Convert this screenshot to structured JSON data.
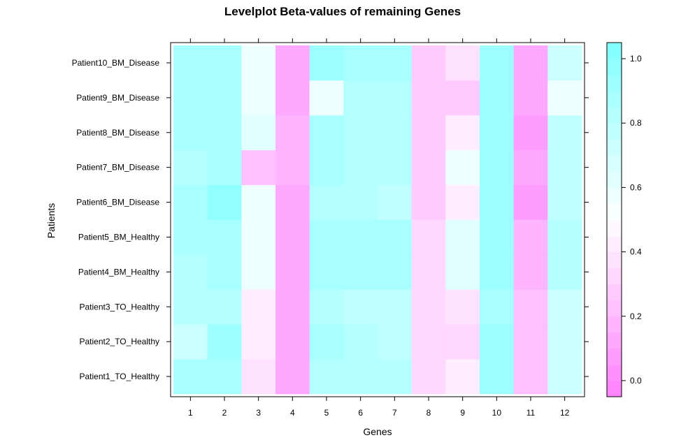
{
  "chart_data": {
    "type": "heatmap",
    "title": "Levelplot Beta-values of remaining Genes",
    "xlabel": "Genes",
    "ylabel": "Patients",
    "x_categories": [
      "1",
      "2",
      "3",
      "4",
      "5",
      "6",
      "7",
      "8",
      "9",
      "10",
      "11",
      "12"
    ],
    "y_categories": [
      "Patient1_TO_Healthy",
      "Patient2_TO_Healthy",
      "Patient3_TO_Healthy",
      "Patient4_BM_Healthy",
      "Patient5_BM_Healthy",
      "Patient6_BM_Disease",
      "Patient7_BM_Disease",
      "Patient8_BM_Disease",
      "Patient9_BM_Disease",
      "Patient10_BM_Disease"
    ],
    "values": [
      [
        0.85,
        0.85,
        0.38,
        0.1,
        0.82,
        0.8,
        0.8,
        0.33,
        0.42,
        0.9,
        0.22,
        0.72
      ],
      [
        0.72,
        0.9,
        0.42,
        0.1,
        0.88,
        0.82,
        0.78,
        0.33,
        0.33,
        0.9,
        0.22,
        0.72
      ],
      [
        0.82,
        0.82,
        0.42,
        0.1,
        0.82,
        0.78,
        0.75,
        0.33,
        0.38,
        0.88,
        0.22,
        0.72
      ],
      [
        0.8,
        0.88,
        0.58,
        0.1,
        0.88,
        0.88,
        0.85,
        0.33,
        0.62,
        0.92,
        0.18,
        0.8
      ],
      [
        0.85,
        0.88,
        0.58,
        0.1,
        0.88,
        0.88,
        0.85,
        0.33,
        0.62,
        0.92,
        0.18,
        0.8
      ],
      [
        0.88,
        0.95,
        0.58,
        0.1,
        0.82,
        0.82,
        0.78,
        0.28,
        0.42,
        0.92,
        0.05,
        0.78
      ],
      [
        0.82,
        0.88,
        0.22,
        0.18,
        0.85,
        0.82,
        0.8,
        0.28,
        0.58,
        0.92,
        0.12,
        0.78
      ],
      [
        0.88,
        0.88,
        0.62,
        0.18,
        0.88,
        0.8,
        0.8,
        0.28,
        0.42,
        0.92,
        0.05,
        0.78
      ],
      [
        0.88,
        0.88,
        0.58,
        0.1,
        0.58,
        0.8,
        0.8,
        0.28,
        0.28,
        0.92,
        0.12,
        0.58
      ],
      [
        0.88,
        0.88,
        0.58,
        0.1,
        0.92,
        0.88,
        0.88,
        0.28,
        0.38,
        0.92,
        0.1,
        0.72
      ]
    ],
    "colorbar": {
      "min": -0.05,
      "max": 1.05,
      "levels": 22,
      "ticks": [
        0.0,
        0.2,
        0.4,
        0.6,
        0.8,
        1.0
      ],
      "tick_labels": [
        "0.0",
        "0.2",
        "0.4",
        "0.6",
        "0.8",
        "1.0"
      ],
      "low_color": "#ff80ff",
      "high_color": "#80ffff"
    }
  }
}
